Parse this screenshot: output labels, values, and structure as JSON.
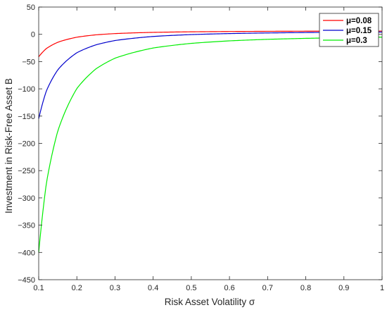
{
  "chart_data": {
    "type": "line",
    "xlabel": "Risk Asset Volatility σ",
    "ylabel": "Investment in Risk-Free Asset B",
    "xlim": [
      0.1,
      1
    ],
    "ylim": [
      -450,
      50
    ],
    "xticks": [
      0.1,
      0.2,
      0.3,
      0.4,
      0.5,
      0.6,
      0.7,
      0.8,
      0.9,
      1
    ],
    "xtick_labels": [
      "0.1",
      "0.2",
      "0.3",
      "0.4",
      "0.5",
      "0.6",
      "0.7",
      "0.8",
      "0.9",
      "1"
    ],
    "yticks": [
      50,
      0,
      -50,
      -100,
      -150,
      -200,
      -250,
      -300,
      -350,
      -400,
      -450
    ],
    "ytick_labels": [
      "50",
      "0",
      "−50",
      "−100",
      "−150",
      "−200",
      "−250",
      "−300",
      "−350",
      "−400",
      "−450"
    ],
    "grid": false,
    "legend_position": "top-right",
    "series": [
      {
        "name": "μ=0.08",
        "color": "#ff0000",
        "x": [
          0.1,
          0.12,
          0.15,
          0.2,
          0.25,
          0.3,
          0.4,
          0.5,
          0.6,
          0.7,
          0.8,
          0.9,
          1.0
        ],
        "y": [
          -41.2,
          -26.1,
          -14.6,
          -5.3,
          -0.97,
          1.36,
          3.58,
          4.6,
          5.16,
          5.49,
          5.71,
          5.86,
          5.97
        ]
      },
      {
        "name": "μ=0.15",
        "color": "#0000cc",
        "x": [
          0.1,
          0.12,
          0.15,
          0.2,
          0.25,
          0.3,
          0.4,
          0.5,
          0.6,
          0.7,
          0.8,
          0.9,
          1.0
        ],
        "y": [
          -154.8,
          -103.9,
          -65.2,
          -33.8,
          -19.3,
          -11.4,
          -3.9,
          -0.48,
          1.39,
          2.52,
          3.25,
          3.76,
          4.12
        ]
      },
      {
        "name": "μ=0.3",
        "color": "#00ee00",
        "x": [
          0.1,
          0.12,
          0.15,
          0.2,
          0.25,
          0.3,
          0.4,
          0.5,
          0.6,
          0.7,
          0.8,
          0.9,
          1.0
        ],
        "y": [
          -400,
          -273.5,
          -177.4,
          -99.4,
          -63.4,
          -43.8,
          -25.1,
          -16.6,
          -12.0,
          -9.2,
          -7.4,
          -6.2,
          -5.2
        ]
      }
    ]
  }
}
